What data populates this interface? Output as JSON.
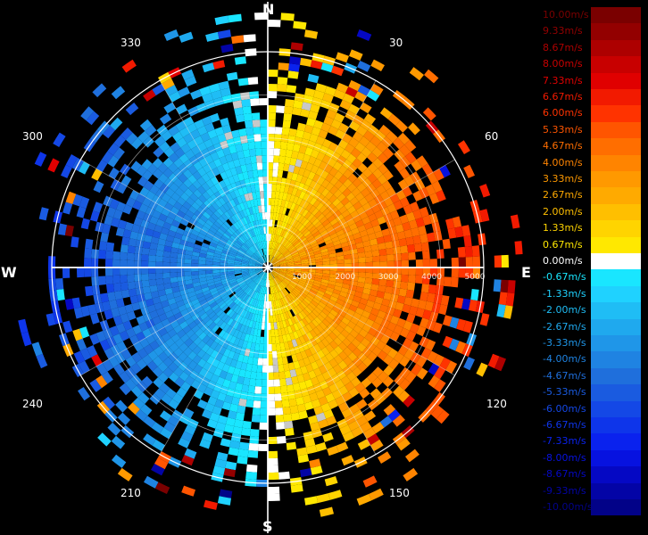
{
  "directions": {
    "north": "N",
    "south": "S",
    "east": "E",
    "west": "W"
  },
  "bearings": [
    "30",
    "60",
    "120",
    "150",
    "210",
    "240",
    "300",
    "330"
  ],
  "range_ring_labels": [
    "1000",
    "2000",
    "3000",
    "4000",
    "5000"
  ],
  "legend": {
    "items": [
      {
        "label": "10.00m/s",
        "color": "#7a0000"
      },
      {
        "label": "9.33m/s",
        "color": "#930000"
      },
      {
        "label": "8.67m/s",
        "color": "#ad0000"
      },
      {
        "label": "8.00m/s",
        "color": "#c80000"
      },
      {
        "label": "7.33m/s",
        "color": "#e00000"
      },
      {
        "label": "6.67m/s",
        "color": "#f21a00"
      },
      {
        "label": "6.00m/s",
        "color": "#ff3300"
      },
      {
        "label": "5.33m/s",
        "color": "#ff5500"
      },
      {
        "label": "4.67m/s",
        "color": "#ff6e00"
      },
      {
        "label": "4.00m/s",
        "color": "#ff8400"
      },
      {
        "label": "3.33m/s",
        "color": "#ff9900"
      },
      {
        "label": "2.67m/s",
        "color": "#ffaa00"
      },
      {
        "label": "2.00m/s",
        "color": "#ffbf00"
      },
      {
        "label": "1.33m/s",
        "color": "#ffd400"
      },
      {
        "label": "0.67m/s",
        "color": "#ffe800"
      },
      {
        "label": "0.00m/s",
        "color": "#ffffff"
      },
      {
        "label": "-0.67m/s",
        "color": "#19e6ff"
      },
      {
        "label": "-1.33m/s",
        "color": "#1fd2ff"
      },
      {
        "label": "-2.00m/s",
        "color": "#1fbdf5"
      },
      {
        "label": "-2.67m/s",
        "color": "#1fa9ee"
      },
      {
        "label": "-3.33m/s",
        "color": "#1f96e8"
      },
      {
        "label": "-4.00m/s",
        "color": "#1f83e2"
      },
      {
        "label": "-4.67m/s",
        "color": "#1f6fdc"
      },
      {
        "label": "-5.33m/s",
        "color": "#1a5be0"
      },
      {
        "label": "-6.00m/s",
        "color": "#1448e6"
      },
      {
        "label": "-6.67m/s",
        "color": "#0e35ea"
      },
      {
        "label": "-7.33m/s",
        "color": "#0a22ee"
      },
      {
        "label": "-8.00m/s",
        "color": "#0712e0"
      },
      {
        "label": "-8.67m/s",
        "color": "#0508c4"
      },
      {
        "label": "-9.33m/s",
        "color": "#0304a6"
      },
      {
        "label": "-10.00m/s",
        "color": "#020288"
      }
    ]
  }
}
